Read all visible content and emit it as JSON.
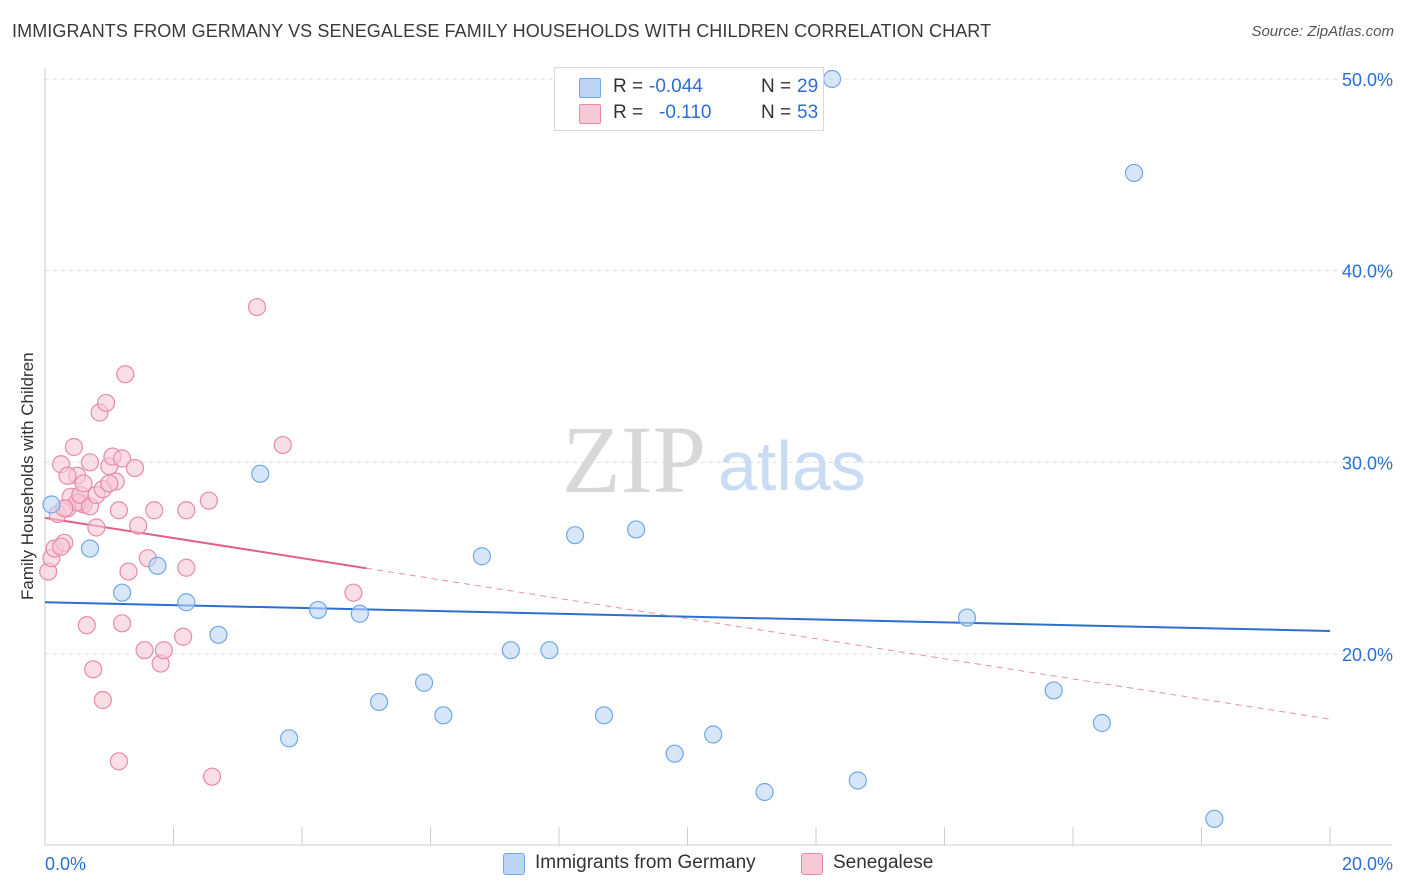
{
  "chart_data": {
    "type": "scatter",
    "title": "IMMIGRANTS FROM GERMANY VS SENEGALESE FAMILY HOUSEHOLDS WITH CHILDREN CORRELATION CHART",
    "source": "Source: ZipAtlas.com",
    "xlabel": "",
    "ylabel": "Family Households with Children",
    "xlim": [
      0.0,
      20.0
    ],
    "ylim": [
      11.0,
      51.5
    ],
    "x_tick_labels": [
      "0.0%",
      "20.0%"
    ],
    "y_ticks": [
      20,
      30,
      40,
      50
    ],
    "y_tick_labels": [
      "20.0%",
      "30.0%",
      "40.0%",
      "50.0%"
    ],
    "watermark": {
      "zip": "ZIP",
      "atlas": "atlas"
    },
    "legend": {
      "r_label": "R =",
      "n_label": "N =",
      "entries": [
        {
          "r": "-0.044",
          "n": "29"
        },
        {
          "r": "-0.110",
          "n": "53"
        }
      ]
    },
    "series": [
      {
        "name": "Immigrants from Germany",
        "color": "#6fa8e8",
        "fill": "#bcd5f5",
        "line_color": "#2b6fd1",
        "trend": {
          "x0": 0.0,
          "y0": 22.7,
          "x1": 20.0,
          "y1": 21.2,
          "dashed_from": null
        },
        "points": [
          [
            0.1,
            27.8
          ],
          [
            0.7,
            25.5
          ],
          [
            1.2,
            23.2
          ],
          [
            1.75,
            24.6
          ],
          [
            2.2,
            22.7
          ],
          [
            2.7,
            21.0
          ],
          [
            3.35,
            29.4
          ],
          [
            3.8,
            15.6
          ],
          [
            4.25,
            22.3
          ],
          [
            4.9,
            22.1
          ],
          [
            5.2,
            17.5
          ],
          [
            5.9,
            18.5
          ],
          [
            6.2,
            16.8
          ],
          [
            6.8,
            25.1
          ],
          [
            7.25,
            20.2
          ],
          [
            7.85,
            20.2
          ],
          [
            8.25,
            26.2
          ],
          [
            8.7,
            16.8
          ],
          [
            9.2,
            26.5
          ],
          [
            9.8,
            14.8
          ],
          [
            10.4,
            15.8
          ],
          [
            11.2,
            12.8
          ],
          [
            12.25,
            50.0
          ],
          [
            12.65,
            13.4
          ],
          [
            14.35,
            21.9
          ],
          [
            15.7,
            18.1
          ],
          [
            16.45,
            16.4
          ],
          [
            16.95,
            45.1
          ],
          [
            18.2,
            11.4
          ]
        ]
      },
      {
        "name": "Senegalese",
        "color": "#e88aa8",
        "fill": "#f7c8d6",
        "line_color": "#e0608a",
        "trend": {
          "x0": 0.0,
          "y0": 27.1,
          "x1": 20.0,
          "y1": 16.6,
          "solid_until": 5.0
        },
        "points": [
          [
            0.05,
            24.3
          ],
          [
            0.1,
            25.0
          ],
          [
            0.15,
            25.5
          ],
          [
            0.2,
            27.3
          ],
          [
            0.25,
            29.9
          ],
          [
            0.3,
            25.8
          ],
          [
            0.35,
            27.6
          ],
          [
            0.4,
            28.2
          ],
          [
            0.45,
            30.8
          ],
          [
            0.5,
            29.3
          ],
          [
            0.55,
            27.9
          ],
          [
            0.6,
            27.8
          ],
          [
            0.65,
            21.5
          ],
          [
            0.7,
            30.0
          ],
          [
            0.75,
            19.2
          ],
          [
            0.8,
            26.6
          ],
          [
            0.85,
            32.6
          ],
          [
            0.9,
            17.6
          ],
          [
            0.95,
            33.1
          ],
          [
            1.0,
            29.8
          ],
          [
            1.05,
            30.3
          ],
          [
            1.1,
            29.0
          ],
          [
            1.15,
            27.5
          ],
          [
            1.2,
            30.2
          ],
          [
            0.5,
            27.9
          ],
          [
            0.55,
            28.3
          ],
          [
            0.6,
            28.9
          ],
          [
            0.35,
            29.3
          ],
          [
            0.3,
            27.6
          ],
          [
            0.25,
            25.6
          ],
          [
            1.3,
            24.3
          ],
          [
            1.25,
            34.6
          ],
          [
            1.4,
            29.7
          ],
          [
            1.45,
            26.7
          ],
          [
            1.55,
            20.2
          ],
          [
            1.6,
            25.0
          ],
          [
            1.7,
            27.5
          ],
          [
            1.8,
            19.5
          ],
          [
            1.85,
            20.2
          ],
          [
            2.2,
            27.5
          ],
          [
            2.15,
            20.9
          ],
          [
            2.2,
            24.5
          ],
          [
            2.55,
            28.0
          ],
          [
            2.6,
            13.6
          ],
          [
            3.3,
            38.1
          ],
          [
            3.7,
            30.9
          ],
          [
            4.8,
            23.2
          ],
          [
            1.2,
            21.6
          ],
          [
            1.15,
            14.4
          ],
          [
            0.7,
            27.7
          ],
          [
            0.8,
            28.3
          ],
          [
            0.9,
            28.6
          ],
          [
            1.0,
            28.9
          ]
        ]
      }
    ]
  }
}
